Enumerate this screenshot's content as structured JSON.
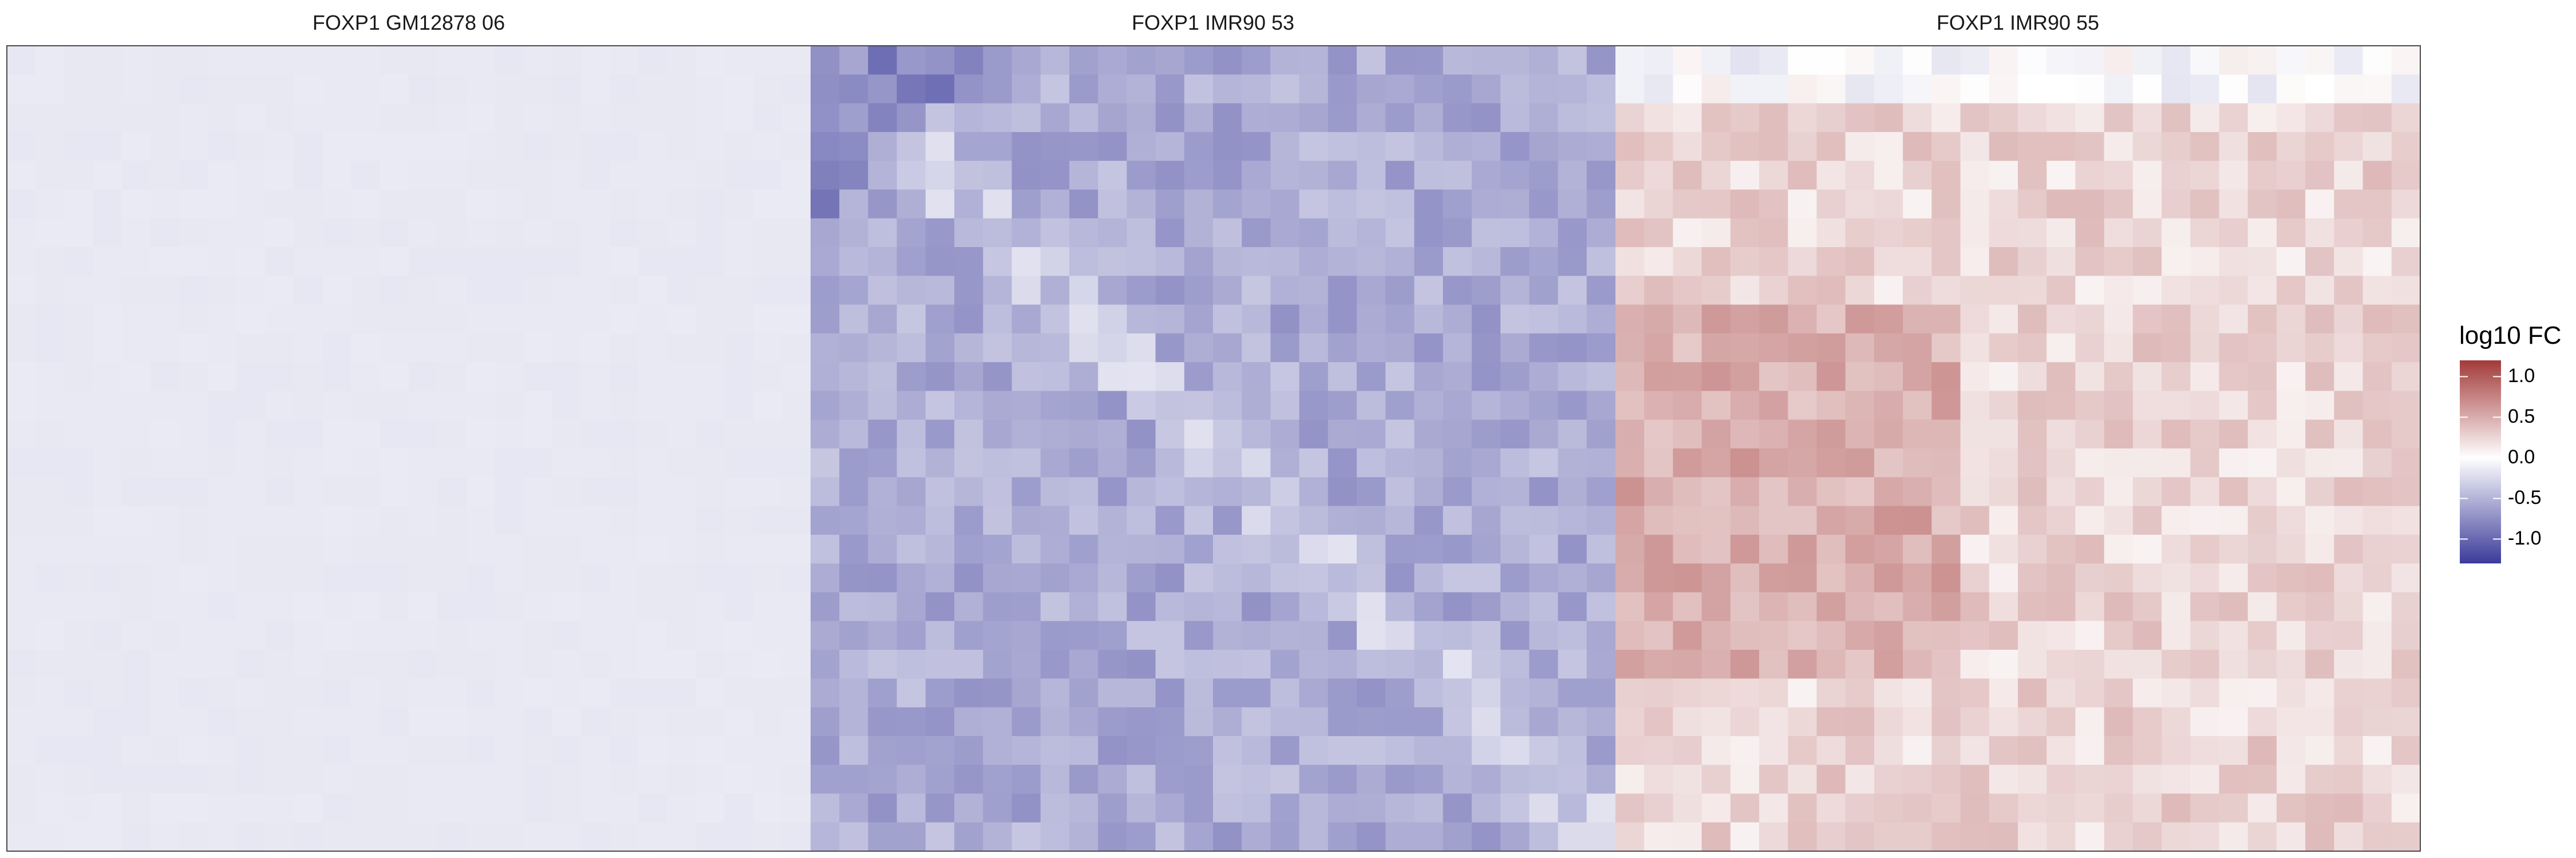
{
  "chart_data": {
    "type": "heatmap",
    "panels": [
      {
        "title": "FOXP1 GM12878 06",
        "cell_value": -0.15,
        "pattern": "uniform"
      },
      {
        "title": "FOXP1 IMR90 53",
        "cell_value": -0.55,
        "pattern": "negative-patchy"
      },
      {
        "title": "FOXP1 IMR90 55",
        "cell_value": 0.25,
        "pattern": "positive-patchy"
      }
    ],
    "colorbar": {
      "title": "log10 FC",
      "min": -1.3,
      "max": 1.2,
      "ticks": [
        1.0,
        0.5,
        0.0,
        -0.5,
        -1.0
      ],
      "tick_labels": [
        "1.0",
        "0.5",
        "0.0",
        "-0.5",
        "-1.0"
      ],
      "low_color": "#3b3b9a",
      "mid_color": "#ffffff",
      "high_color": "#a33a3a"
    },
    "grid": false,
    "legend_position": "right"
  }
}
